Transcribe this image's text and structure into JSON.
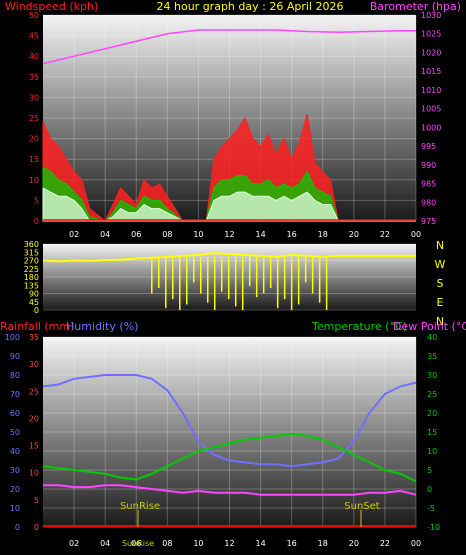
{
  "header": {
    "title": "24 hour graph day : 26 April 2026",
    "left_label": "Windspeed (kph)",
    "right_label": "Barometer (hpa)"
  },
  "bottom_header": {
    "rain_label": "Rainfall (mm)",
    "humidity_label": "Humidity (%)",
    "temp_label": "Temperature (°C)",
    "dew_label": "Dew Point (°C)"
  },
  "sun": {
    "rise_label": "SunRise",
    "set_label": "SunSet",
    "rise_axis_label": "SunRise"
  },
  "compass": [
    "N",
    "W",
    "S",
    "E",
    "N"
  ],
  "colors": {
    "wind": "#ff0000",
    "gust": "#ff2020",
    "avg": "#00cc00",
    "calm": "#e0ffe0",
    "baro": "#ff44ff",
    "dir": "#ffff00",
    "humidity": "#7070ff",
    "temp": "#00cc00",
    "dew": "#ff44ff",
    "rain": "#ff0000"
  },
  "chart_data": [
    {
      "type": "line",
      "title": "24 hour graph day : 26 April 2026",
      "ylabel": "Windspeed (kph)",
      "y2label": "Barometer (hpa)",
      "x_ticks": [
        "02",
        "04",
        "06",
        "08",
        "10",
        "12",
        "14",
        "16",
        "18",
        "20",
        "22",
        "00"
      ],
      "ylim": [
        0,
        50
      ],
      "y_ticks": [
        "0",
        "5",
        "10",
        "15",
        "20",
        "25",
        "30",
        "35",
        "40",
        "45",
        "50"
      ],
      "y2lim": [
        975,
        1030
      ],
      "y2_ticks": [
        "975",
        "980",
        "985",
        "990",
        "995",
        "1000",
        "1005",
        "1010",
        "1015",
        "1020",
        "1025",
        "1030"
      ],
      "series": [
        {
          "name": "Barometer (hpa)",
          "x": [
            0,
            1,
            2,
            3,
            4,
            5,
            6,
            7,
            8,
            9,
            10,
            11,
            12,
            13,
            14,
            15,
            16,
            17,
            18,
            19,
            20,
            21,
            22,
            23,
            24
          ],
          "values": [
            1017,
            1018,
            1019,
            1020,
            1021,
            1022,
            1023,
            1024,
            1025,
            1025.5,
            1026,
            1026,
            1026,
            1026,
            1026,
            1026,
            1025.8,
            1025.6,
            1025.5,
            1025.4,
            1025.5,
            1025.6,
            1025.7,
            1025.8,
            1025.8
          ]
        },
        {
          "name": "Gust",
          "x": [
            0,
            0.5,
            1,
            1.5,
            2,
            2.5,
            3,
            4,
            4.5,
            5,
            5.5,
            6,
            6.5,
            7,
            7.5,
            8,
            9,
            9.5,
            10,
            10.5,
            11,
            11.5,
            12,
            12.5,
            13,
            13.5,
            14,
            14.5,
            15,
            15.5,
            16,
            16.5,
            17,
            17.5,
            18,
            18.5,
            19,
            20,
            24
          ],
          "values": [
            24,
            20,
            18,
            15,
            12,
            10,
            3,
            0,
            4,
            8,
            6,
            4,
            10,
            8,
            9,
            6,
            0,
            0,
            0,
            0,
            15,
            18,
            20,
            22,
            25,
            20,
            18,
            21,
            16,
            20,
            15,
            19,
            26,
            14,
            12,
            10,
            0,
            0,
            0
          ]
        },
        {
          "name": "Average",
          "x": [
            0,
            0.5,
            1,
            1.5,
            2,
            2.5,
            3,
            4,
            4.5,
            5,
            5.5,
            6,
            6.5,
            7,
            7.5,
            8,
            9,
            9.5,
            10,
            10.5,
            11,
            11.5,
            12,
            12.5,
            13,
            13.5,
            14,
            14.5,
            15,
            15.5,
            16,
            16.5,
            17,
            17.5,
            18,
            18.5,
            19,
            20,
            24
          ],
          "values": [
            13,
            12,
            10,
            9,
            7,
            5,
            1,
            0,
            2,
            5,
            4,
            3,
            6,
            5,
            5,
            3,
            0,
            0,
            0,
            0,
            8,
            10,
            10,
            11,
            11,
            9,
            9,
            10,
            8,
            9,
            8,
            9,
            12,
            8,
            7,
            6,
            0,
            0,
            0
          ]
        },
        {
          "name": "Calm",
          "x": [
            0,
            0.5,
            1,
            1.5,
            2,
            2.5,
            3,
            4,
            4.5,
            5,
            5.5,
            6,
            6.5,
            7,
            7.5,
            8,
            9,
            9.5,
            10,
            10.5,
            11,
            11.5,
            12,
            12.5,
            13,
            13.5,
            14,
            14.5,
            15,
            15.5,
            16,
            16.5,
            17,
            17.5,
            18,
            18.5,
            19,
            20,
            24
          ],
          "values": [
            8,
            7,
            6,
            6,
            5,
            3,
            0,
            0,
            1,
            3,
            2,
            2,
            4,
            3,
            3,
            2,
            0,
            0,
            0,
            0,
            5,
            6,
            6,
            7,
            7,
            6,
            6,
            6,
            5,
            6,
            5,
            6,
            7,
            5,
            4,
            4,
            0,
            0,
            0
          ]
        }
      ]
    },
    {
      "type": "line",
      "ylabel": "Wind direction",
      "ylim": [
        0,
        360
      ],
      "y_ticks": [
        "0",
        "45",
        "90",
        "135",
        "180",
        "225",
        "270",
        "315",
        "360"
      ],
      "series": [
        {
          "name": "Direction",
          "x": [
            0,
            1,
            2,
            3,
            4,
            5,
            6,
            7,
            8,
            9,
            10,
            11,
            12,
            13,
            14,
            15,
            16,
            17,
            18,
            19,
            20,
            21,
            22,
            23,
            24
          ],
          "values": [
            270,
            265,
            270,
            268,
            272,
            275,
            280,
            285,
            290,
            295,
            300,
            310,
            305,
            300,
            295,
            290,
            300,
            295,
            290,
            295,
            295,
            295,
            295,
            295,
            295
          ]
        }
      ]
    },
    {
      "type": "line",
      "ylabel": "Rainfall (mm)",
      "y2label": "Humidity (%)",
      "y3label": "Temperature (°C)",
      "y4label": "Dew Point (°C)",
      "x_ticks": [
        "02",
        "04",
        "06",
        "08",
        "10",
        "12",
        "14",
        "16",
        "18",
        "20",
        "22",
        "00"
      ],
      "rain_ticks": [
        "0",
        "10",
        "20",
        "30",
        "40",
        "50",
        "60",
        "70",
        "80",
        "90",
        "100"
      ],
      "hum_ticks": [
        "0",
        "5",
        "10",
        "15",
        "20",
        "25",
        "30",
        "35"
      ],
      "temp_ticks": [
        "-10",
        "-5",
        "0",
        "5",
        "10",
        "15",
        "20",
        "25",
        "30",
        "35",
        "40"
      ],
      "temp_lim": [
        -10,
        40
      ],
      "series": [
        {
          "name": "Humidity (%)",
          "x": [
            0,
            1,
            2,
            3,
            4,
            5,
            6,
            7,
            8,
            9,
            10,
            11,
            12,
            13,
            14,
            15,
            16,
            17,
            18,
            19,
            20,
            21,
            22,
            23,
            24
          ],
          "values": [
            74,
            75,
            78,
            79,
            80,
            80,
            80,
            78,
            72,
            60,
            45,
            38,
            35,
            34,
            33,
            33,
            32,
            33,
            34,
            36,
            45,
            60,
            70,
            74,
            76
          ]
        },
        {
          "name": "Temperature (°C)",
          "x": [
            0,
            1,
            2,
            3,
            4,
            5,
            6,
            7,
            8,
            9,
            10,
            11,
            12,
            13,
            14,
            15,
            16,
            17,
            18,
            19,
            20,
            21,
            22,
            23,
            24
          ],
          "values": [
            6,
            5.5,
            5,
            4.5,
            4,
            3,
            2.5,
            4,
            6,
            8,
            10,
            11,
            12,
            13,
            13.5,
            14,
            14.5,
            14,
            13,
            11,
            9,
            7,
            5,
            4,
            2
          ]
        },
        {
          "name": "Dew Point (°C)",
          "x": [
            0,
            1,
            2,
            3,
            4,
            5,
            6,
            7,
            8,
            9,
            10,
            11,
            12,
            13,
            14,
            15,
            16,
            17,
            18,
            19,
            20,
            21,
            22,
            23,
            24
          ],
          "values": [
            1,
            1,
            0.5,
            0.5,
            1,
            1,
            0.5,
            0,
            -0.5,
            -1,
            -0.5,
            -1,
            -1,
            -1,
            -1.5,
            -1.5,
            -1.5,
            -1.5,
            -1.5,
            -1.5,
            -1.5,
            -1,
            -1,
            -0.5,
            -1.5
          ]
        },
        {
          "name": "Rainfall (mm)",
          "x": [
            0,
            24
          ],
          "values": [
            0,
            0
          ]
        }
      ]
    }
  ]
}
